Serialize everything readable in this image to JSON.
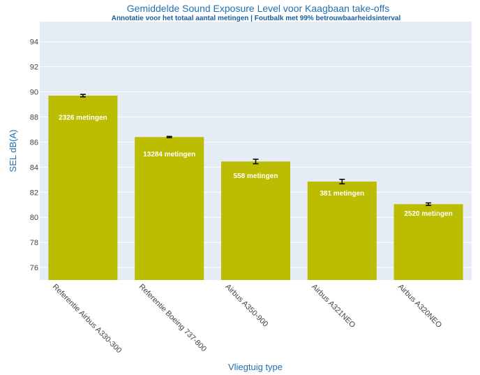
{
  "chart_data": {
    "type": "bar",
    "title": "Gemiddelde Sound Exposure Level voor Kaagbaan take-offs",
    "subtitle": "Annotatie voor het totaal aantal metingen | Foutbalk met 99% betrouwbaarheidsinterval",
    "xlabel": "Vliegtuig type",
    "ylabel": "SEL dB(A)",
    "ylim": [
      75,
      95.6
    ],
    "yticks": [
      "76",
      "78",
      "80",
      "82",
      "84",
      "86",
      "88",
      "90",
      "92",
      "94"
    ],
    "categories": [
      "Referentie Airbus A330-300",
      "Referentie Boeing 737-800",
      "Airbus A350-900",
      "Airbus A321NEO",
      "Airbus A320NEO"
    ],
    "values": [
      89.7,
      86.4,
      84.45,
      82.85,
      81.05
    ],
    "error": [
      0.1,
      0.05,
      0.18,
      0.18,
      0.1
    ],
    "annotations": [
      "2326 metingen",
      "13284 metingen",
      "558 metingen",
      "381 metingen",
      "2520 metingen"
    ],
    "bar_color": "#bcbd00",
    "plot_background": "#e5ecf6",
    "grid": true
  }
}
